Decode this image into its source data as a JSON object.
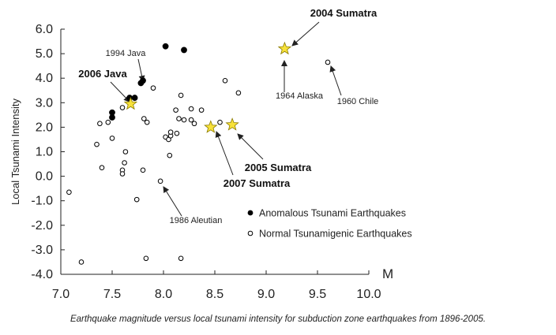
{
  "caption": "Earthquake magnitude versus local tsunami intensity for subduction zone earthquakes from 1896-2005.",
  "chart_data": {
    "type": "scatter",
    "title": "",
    "xlabel": "M",
    "ylabel": "Local Tsunami Intensity",
    "xlim": [
      7.0,
      10.0
    ],
    "ylim": [
      -4.0,
      6.0
    ],
    "x_ticks": [
      "7.0",
      "7.5",
      "8.0",
      "8.5",
      "9.0",
      "9.5",
      "10.0"
    ],
    "y_ticks": [
      "-4.0",
      "-3.0",
      "-2.0",
      "-1.0",
      "0.0",
      "1.0",
      "2.0",
      "3.0",
      "4.0",
      "5.0",
      "6.0"
    ],
    "grid": false,
    "legend_position": "bottom-right",
    "series": [
      {
        "name": "Anomalous Tsunami Earthquakes",
        "marker": "filled-circle",
        "color": "#000000",
        "points": [
          [
            7.5,
            2.6
          ],
          [
            7.5,
            2.4
          ],
          [
            7.67,
            3.2
          ],
          [
            7.72,
            3.2
          ],
          [
            7.78,
            3.8
          ],
          [
            7.8,
            3.9
          ],
          [
            8.02,
            5.3
          ],
          [
            8.2,
            5.15
          ]
        ]
      },
      {
        "name": "Normal Tsunamigenic Earthquakes",
        "marker": "open-circle",
        "color": "#000000",
        "points": [
          [
            7.08,
            -0.65
          ],
          [
            7.2,
            -3.5
          ],
          [
            7.35,
            1.3
          ],
          [
            7.38,
            2.15
          ],
          [
            7.4,
            0.35
          ],
          [
            7.46,
            2.2
          ],
          [
            7.5,
            1.55
          ],
          [
            7.6,
            2.8
          ],
          [
            7.6,
            0.25
          ],
          [
            7.6,
            0.1
          ],
          [
            7.62,
            0.55
          ],
          [
            7.63,
            1.0
          ],
          [
            7.74,
            -0.95
          ],
          [
            7.8,
            0.25
          ],
          [
            7.81,
            2.35
          ],
          [
            7.83,
            -3.35
          ],
          [
            7.84,
            2.2
          ],
          [
            7.9,
            3.6
          ],
          [
            7.97,
            -0.2
          ],
          [
            8.02,
            1.6
          ],
          [
            8.05,
            1.5
          ],
          [
            8.06,
            0.85
          ],
          [
            8.07,
            1.65
          ],
          [
            8.07,
            1.8
          ],
          [
            8.12,
            2.7
          ],
          [
            8.13,
            1.75
          ],
          [
            8.15,
            2.35
          ],
          [
            8.17,
            3.3
          ],
          [
            8.17,
            -3.35
          ],
          [
            8.2,
            2.3
          ],
          [
            8.27,
            2.75
          ],
          [
            8.27,
            2.3
          ],
          [
            8.3,
            2.15
          ],
          [
            8.37,
            2.7
          ],
          [
            8.55,
            2.2
          ],
          [
            8.6,
            3.9
          ],
          [
            8.73,
            3.4
          ],
          [
            9.6,
            4.65
          ]
        ]
      },
      {
        "name": "",
        "marker": "star",
        "color": "#f7e13a",
        "points": [
          [
            7.68,
            2.95
          ],
          [
            8.46,
            2.0
          ],
          [
            8.67,
            2.1
          ],
          [
            9.18,
            5.2
          ]
        ]
      }
    ],
    "annotations": [
      {
        "label": "2004 Sumatra",
        "bold": true,
        "x": 9.18,
        "y": 5.2
      },
      {
        "label": "1994 Java",
        "bold": false,
        "x": 7.78,
        "y": 3.8
      },
      {
        "label": "2006 Java",
        "bold": true,
        "x": 7.68,
        "y": 2.95
      },
      {
        "label": "1964 Alaska",
        "bold": false,
        "x": 9.18,
        "y": 5.2
      },
      {
        "label": "1960 Chile",
        "bold": false,
        "x": 9.6,
        "y": 4.65
      },
      {
        "label": "2005 Sumatra",
        "bold": true,
        "x": 8.67,
        "y": 2.1
      },
      {
        "label": "2007 Sumatra",
        "bold": true,
        "x": 8.46,
        "y": 2.0
      },
      {
        "label": "1986 Aleutian",
        "bold": false,
        "x": 7.97,
        "y": -0.2
      }
    ]
  }
}
